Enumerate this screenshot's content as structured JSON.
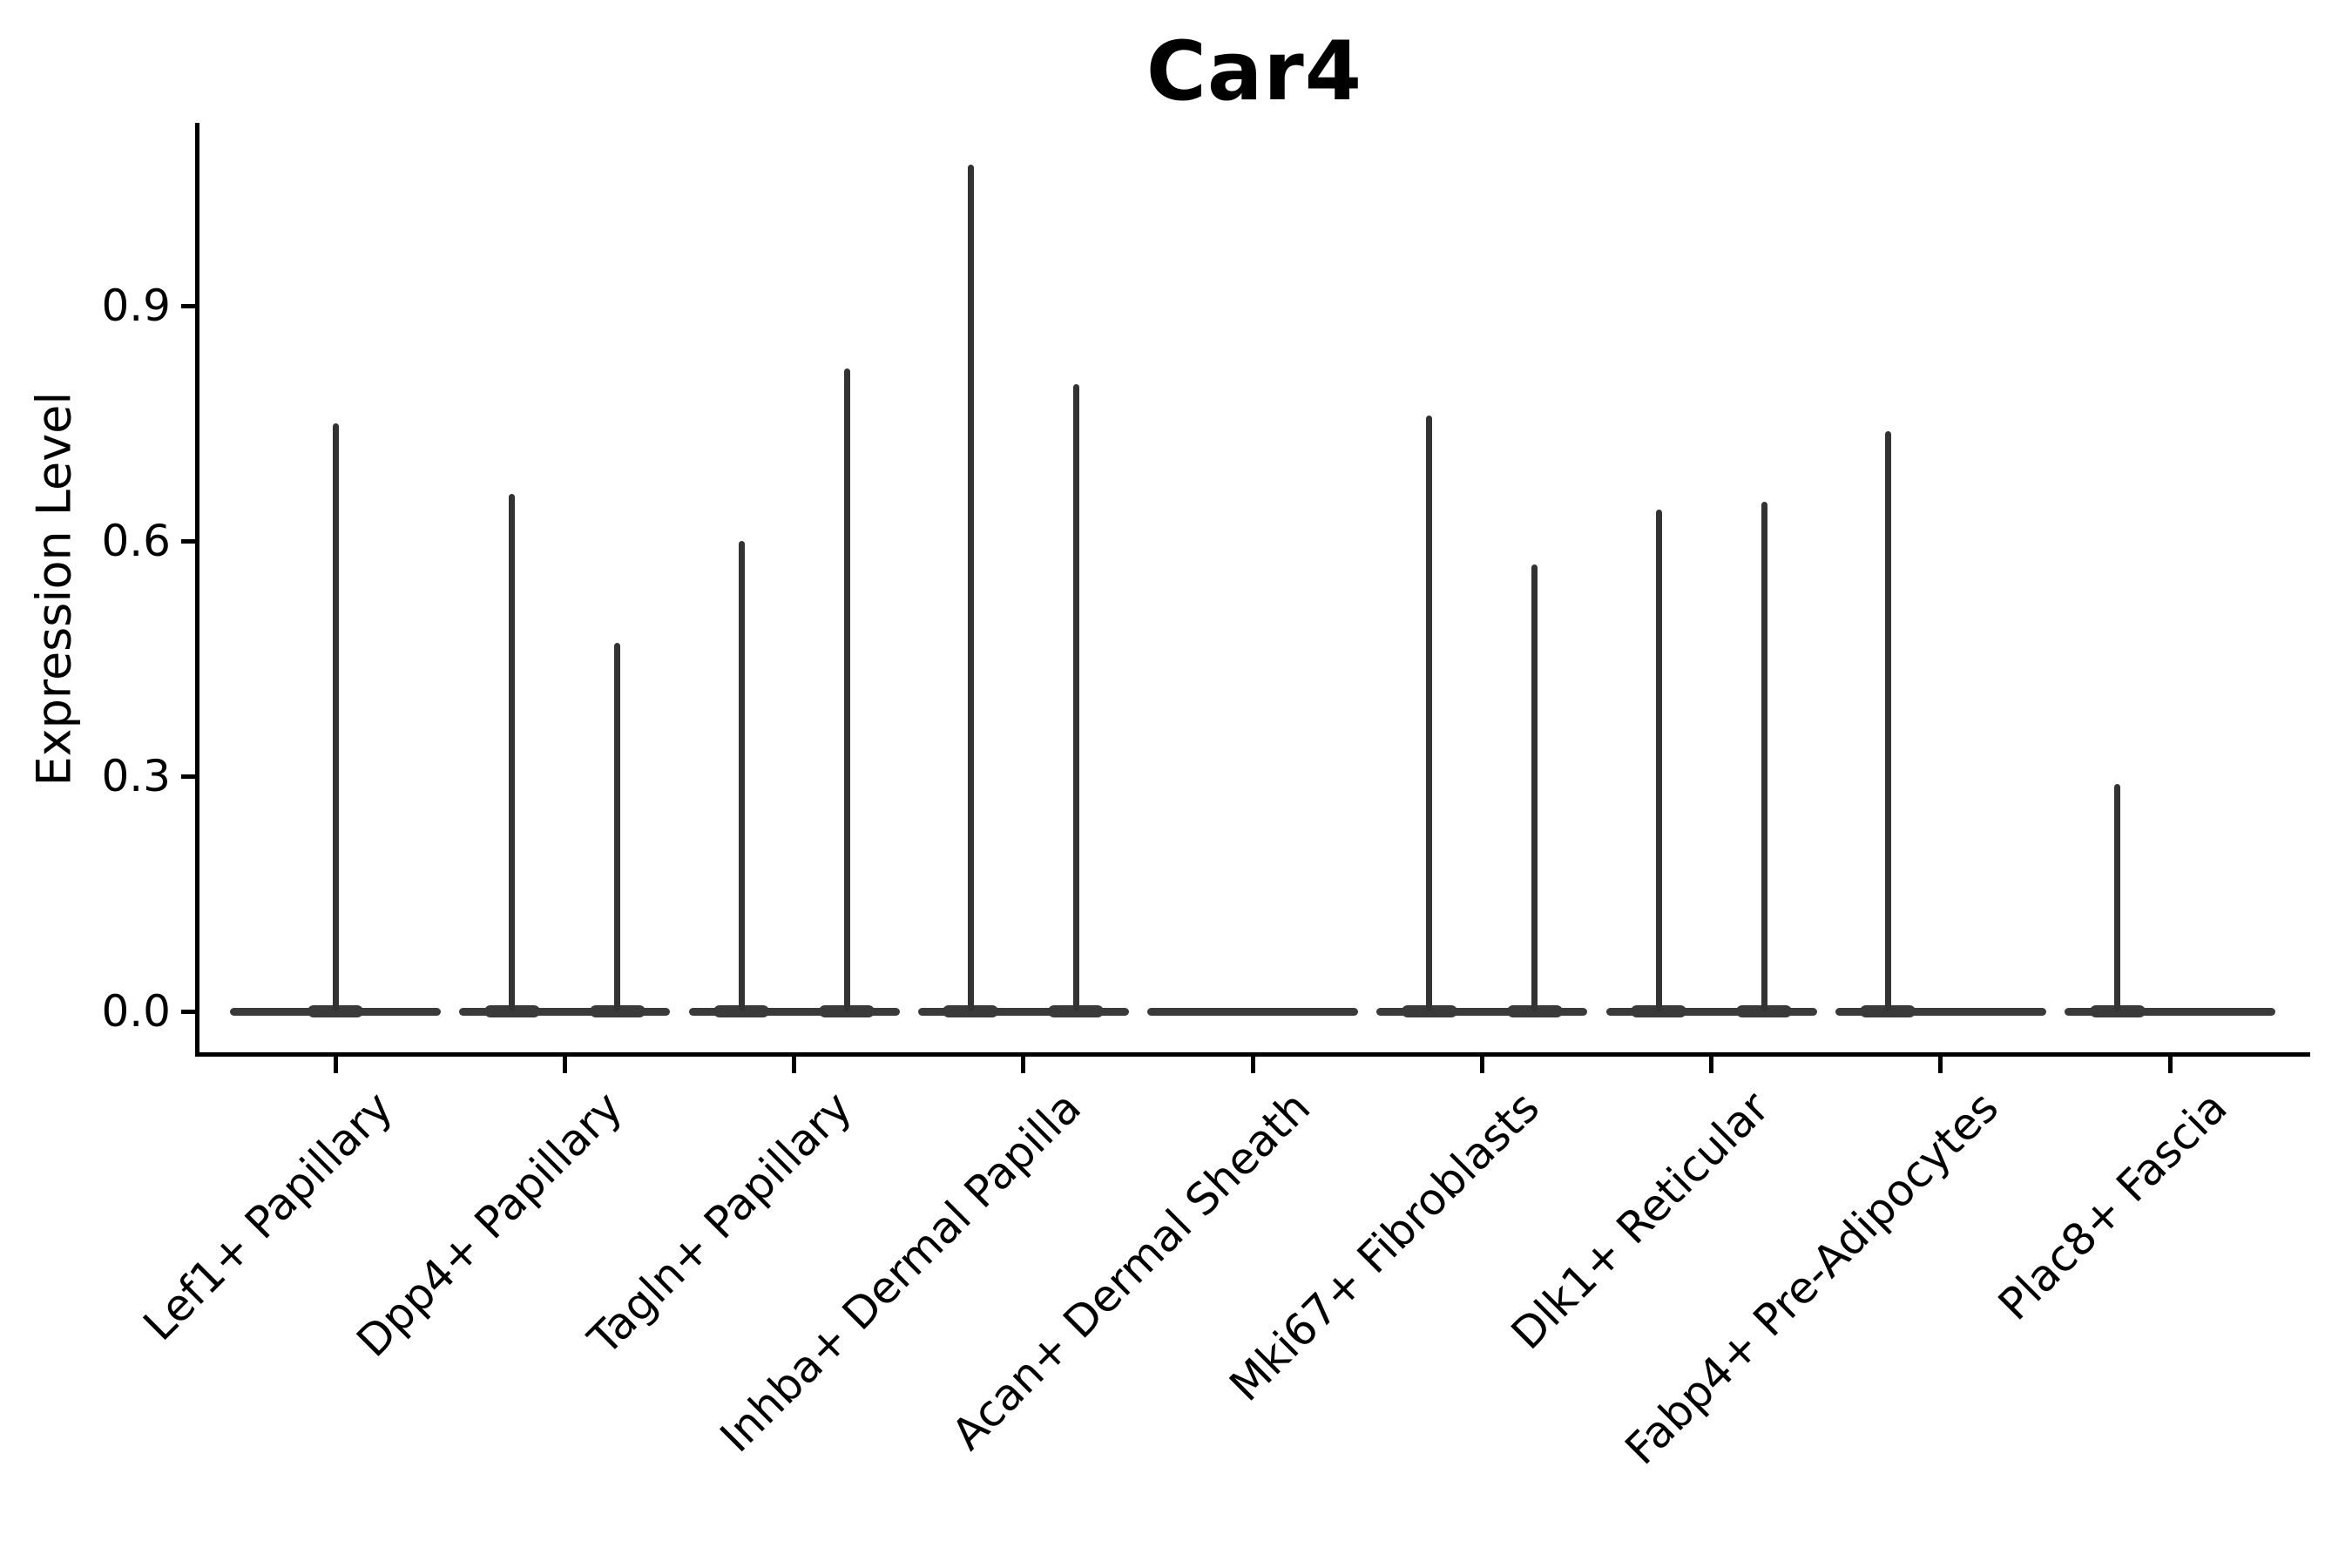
{
  "title": "Car4",
  "y_axis": {
    "label": "Expression Level",
    "ticks": [
      {
        "value": 0.0,
        "label": "0.0"
      },
      {
        "value": 0.3,
        "label": "0.3"
      },
      {
        "value": 0.6,
        "label": "0.6"
      },
      {
        "value": 0.9,
        "label": "0.9"
      }
    ]
  },
  "chart_data": {
    "type": "violin",
    "title": "Car4",
    "xlabel": "",
    "ylabel": "Expression Level",
    "ylim": [
      -0.054,
      1.133
    ],
    "yticks": [
      0.0,
      0.3,
      0.6,
      0.9
    ],
    "grid": false,
    "legend": "none",
    "note": "Single-cell expression violin plot: each category shows a flat density base at 0 with thin spikes rising to the maximum expression of each sub-violin (most cells express 0).",
    "categories": [
      "Lef1+ Papillary",
      "Dpp4+ Papillary",
      "Tagln+ Papillary",
      "Inhba+ Dermal Papilla",
      "Acan+ Dermal Sheath",
      "Mki67+ Fibroblasts",
      "Dlk1+ Reticular",
      "Fabp4+ Pre-Adipocytes",
      "Plac8+ Fascia"
    ],
    "violins": [
      {
        "category": "Lef1+ Papillary",
        "spikes": [
          {
            "pos": "center",
            "max": 0.75
          }
        ]
      },
      {
        "category": "Dpp4+ Papillary",
        "spikes": [
          {
            "pos": "left",
            "max": 0.66
          },
          {
            "pos": "right",
            "max": 0.47
          }
        ]
      },
      {
        "category": "Tagln+ Papillary",
        "spikes": [
          {
            "pos": "left",
            "max": 0.6
          },
          {
            "pos": "right",
            "max": 0.82
          }
        ]
      },
      {
        "category": "Inhba+ Dermal Papilla",
        "spikes": [
          {
            "pos": "left",
            "max": 1.08
          },
          {
            "pos": "right",
            "max": 0.8
          }
        ]
      },
      {
        "category": "Acan+ Dermal Sheath",
        "spikes": []
      },
      {
        "category": "Mki67+ Fibroblasts",
        "spikes": [
          {
            "pos": "left",
            "max": 0.76
          },
          {
            "pos": "right",
            "max": 0.57
          }
        ]
      },
      {
        "category": "Dlk1+ Reticular",
        "spikes": [
          {
            "pos": "left",
            "max": 0.64
          },
          {
            "pos": "right",
            "max": 0.65
          }
        ]
      },
      {
        "category": "Fabp4+ Pre-Adipocytes",
        "spikes": [
          {
            "pos": "left",
            "max": 0.74
          }
        ]
      },
      {
        "category": "Plac8+ Fascia",
        "spikes": [
          {
            "pos": "left",
            "max": 0.29
          }
        ]
      }
    ]
  }
}
